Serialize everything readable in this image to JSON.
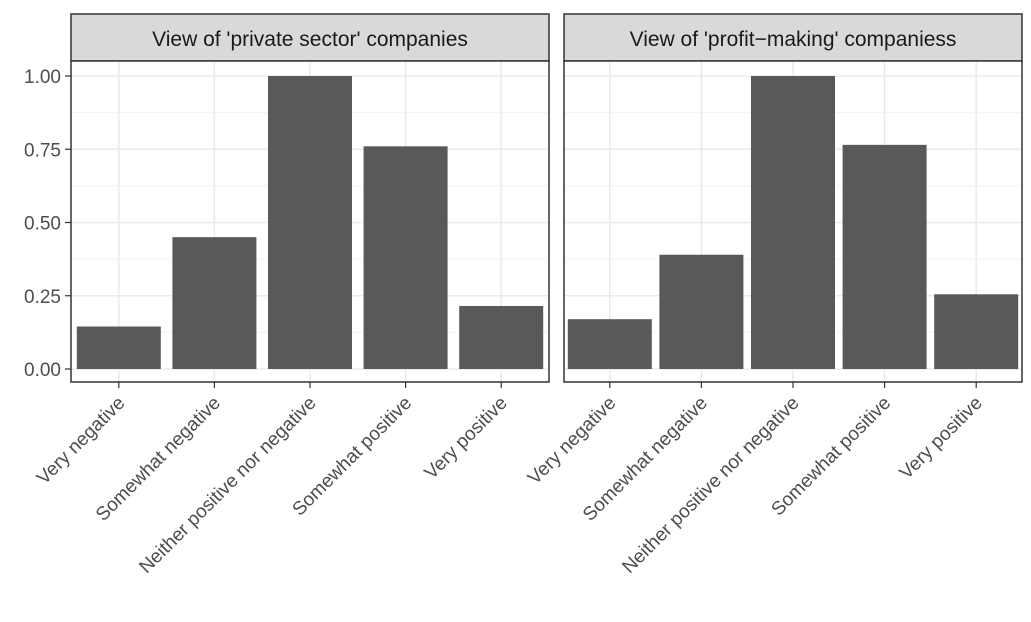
{
  "chart_data": {
    "type": "bar",
    "ylim": [
      0,
      1.08
    ],
    "y_ticks": [
      "0.00",
      "0.25",
      "0.50",
      "0.75",
      "1.00"
    ],
    "grid": true,
    "bar_color": "#595959",
    "strip_color": "#d9d9d9",
    "categories": [
      "Very negative",
      "Somewhat negative",
      "Neither positive nor negative",
      "Somewhat positive",
      "Very positive"
    ],
    "facets": [
      {
        "title": "View of 'private sector' companies",
        "values": [
          0.145,
          0.45,
          1.0,
          0.76,
          0.215
        ]
      },
      {
        "title": "View of 'profit−making' companiess",
        "values": [
          0.17,
          0.39,
          1.0,
          0.765,
          0.255
        ]
      }
    ]
  }
}
